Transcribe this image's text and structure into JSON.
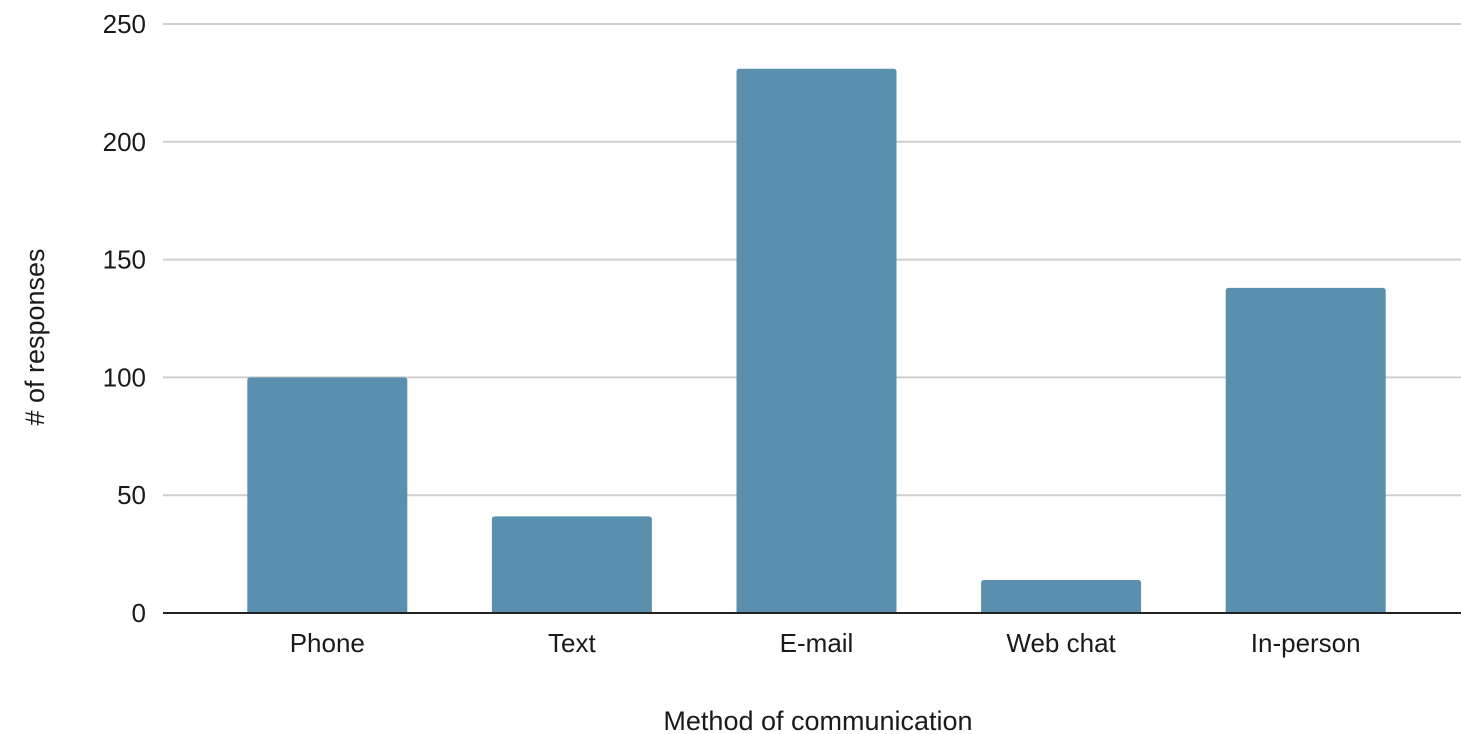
{
  "chart_data": {
    "type": "bar",
    "categories": [
      "Phone",
      "Text",
      "E-mail",
      "Web chat",
      "In-person"
    ],
    "values": [
      100,
      41,
      231,
      14,
      138
    ],
    "title": "",
    "xlabel": "Method of communication",
    "ylabel": "# of responses",
    "ylim": [
      0,
      250
    ],
    "yticks": [
      0,
      50,
      100,
      150,
      200,
      250
    ],
    "grid": true,
    "legend": "none",
    "bar_color": "#5a8fae"
  }
}
